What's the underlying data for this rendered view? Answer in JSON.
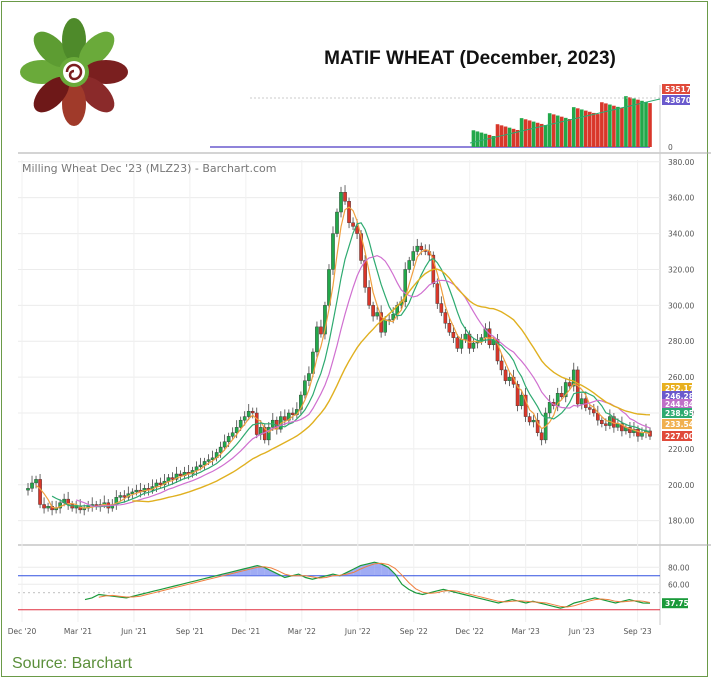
{
  "title": "MATIF WHEAT (December, 2023)",
  "source": "Source: Barchart",
  "chart_data": {
    "type": "candlestick",
    "symbol_label": "Milling Wheat Dec '23 (MLZ23) - Barchart.com",
    "x_tick_labels": [
      "Dec '20",
      "Mar '21",
      "Jun '21",
      "Sep '21",
      "Dec '21",
      "Mar '22",
      "Jun '22",
      "Sep '22",
      "Dec '22",
      "Mar '23",
      "Jun '23",
      "Sep '23"
    ],
    "price_axis": {
      "ticks": [
        180,
        200,
        220,
        240,
        260,
        280,
        300,
        320,
        340,
        360,
        380
      ],
      "ylim": [
        172,
        381
      ]
    },
    "volume_axis": {
      "ticks": [
        0
      ],
      "badges": [
        "53517",
        "43670"
      ]
    },
    "oscillator_axis": {
      "ticks": [
        60.0,
        80.0
      ],
      "ylim": [
        18,
        98
      ],
      "overbought": 70,
      "oversold": 30
    },
    "price_badges": [
      {
        "value": "252.17",
        "color": "#e8b020"
      },
      {
        "value": "246.28",
        "color": "#6a5acd"
      },
      {
        "value": "244.84",
        "color": "#c070c8"
      },
      {
        "value": "238.95",
        "color": "#2eaa70"
      },
      {
        "value": "233.54",
        "color": "#f0b050"
      },
      {
        "value": "227.00",
        "color": "#e04a3a"
      }
    ],
    "oscillator_badge": {
      "value": "37.75",
      "color": "#1a9a3a"
    },
    "colors": {
      "up": "#22a84a",
      "down": "#d9372a",
      "ma_fast": "#f0a040",
      "ma_mid": "#2eaa70",
      "ma_slow": "#d070d0",
      "ma_long": "#e0b020",
      "overbought_line": "#3050e0",
      "oversold_line": "#e03040",
      "osc_fill": "#8090f0"
    },
    "price_path": [
      197,
      198,
      201,
      203,
      189,
      187,
      188,
      186,
      187,
      190,
      192,
      189,
      187,
      188,
      186,
      187,
      188,
      189,
      188,
      189,
      190,
      187,
      189,
      193,
      194,
      193,
      195,
      196,
      197,
      196,
      198,
      197,
      199,
      201,
      200,
      202,
      204,
      203,
      206,
      205,
      207,
      206,
      208,
      210,
      211,
      213,
      214,
      215,
      218,
      221,
      224,
      227,
      229,
      232,
      236,
      238,
      241,
      240,
      228,
      232,
      225,
      232,
      236,
      231,
      238,
      236,
      240,
      239,
      242,
      250,
      258,
      262,
      274,
      288,
      284,
      300,
      320,
      340,
      352,
      363,
      358,
      346,
      344,
      340,
      325,
      310,
      300,
      294,
      296,
      285,
      292,
      292,
      295,
      300,
      302,
      320,
      325,
      330,
      333,
      331,
      330,
      328,
      312,
      301,
      296,
      290,
      285,
      282,
      276,
      281,
      284,
      276,
      279,
      280,
      282,
      287,
      278,
      281,
      269,
      264,
      258,
      260,
      256,
      244,
      250,
      238,
      235,
      236,
      229,
      225,
      240,
      246,
      244,
      251,
      249,
      257,
      255,
      264,
      245,
      248,
      243,
      242,
      240,
      236,
      234,
      233,
      238,
      232,
      234,
      230,
      232,
      229,
      231,
      227,
      229,
      230,
      227
    ],
    "oscillator_path": [
      42,
      44,
      48,
      47,
      46,
      45,
      44,
      46,
      48,
      50,
      52,
      54,
      56,
      58,
      60,
      62,
      64,
      66,
      68,
      70,
      72,
      74,
      76,
      78,
      80,
      82,
      80,
      76,
      72,
      68,
      70,
      72,
      68,
      66,
      68,
      70,
      72,
      70,
      74,
      78,
      82,
      84,
      86,
      84,
      80,
      72,
      60,
      54,
      50,
      48,
      50,
      52,
      54,
      52,
      50,
      48,
      46,
      44,
      42,
      40,
      38,
      40,
      42,
      40,
      38,
      40,
      38,
      36,
      34,
      32,
      34,
      38,
      40,
      42,
      44,
      42,
      40,
      38,
      40,
      42,
      40,
      38,
      37.75
    ]
  }
}
